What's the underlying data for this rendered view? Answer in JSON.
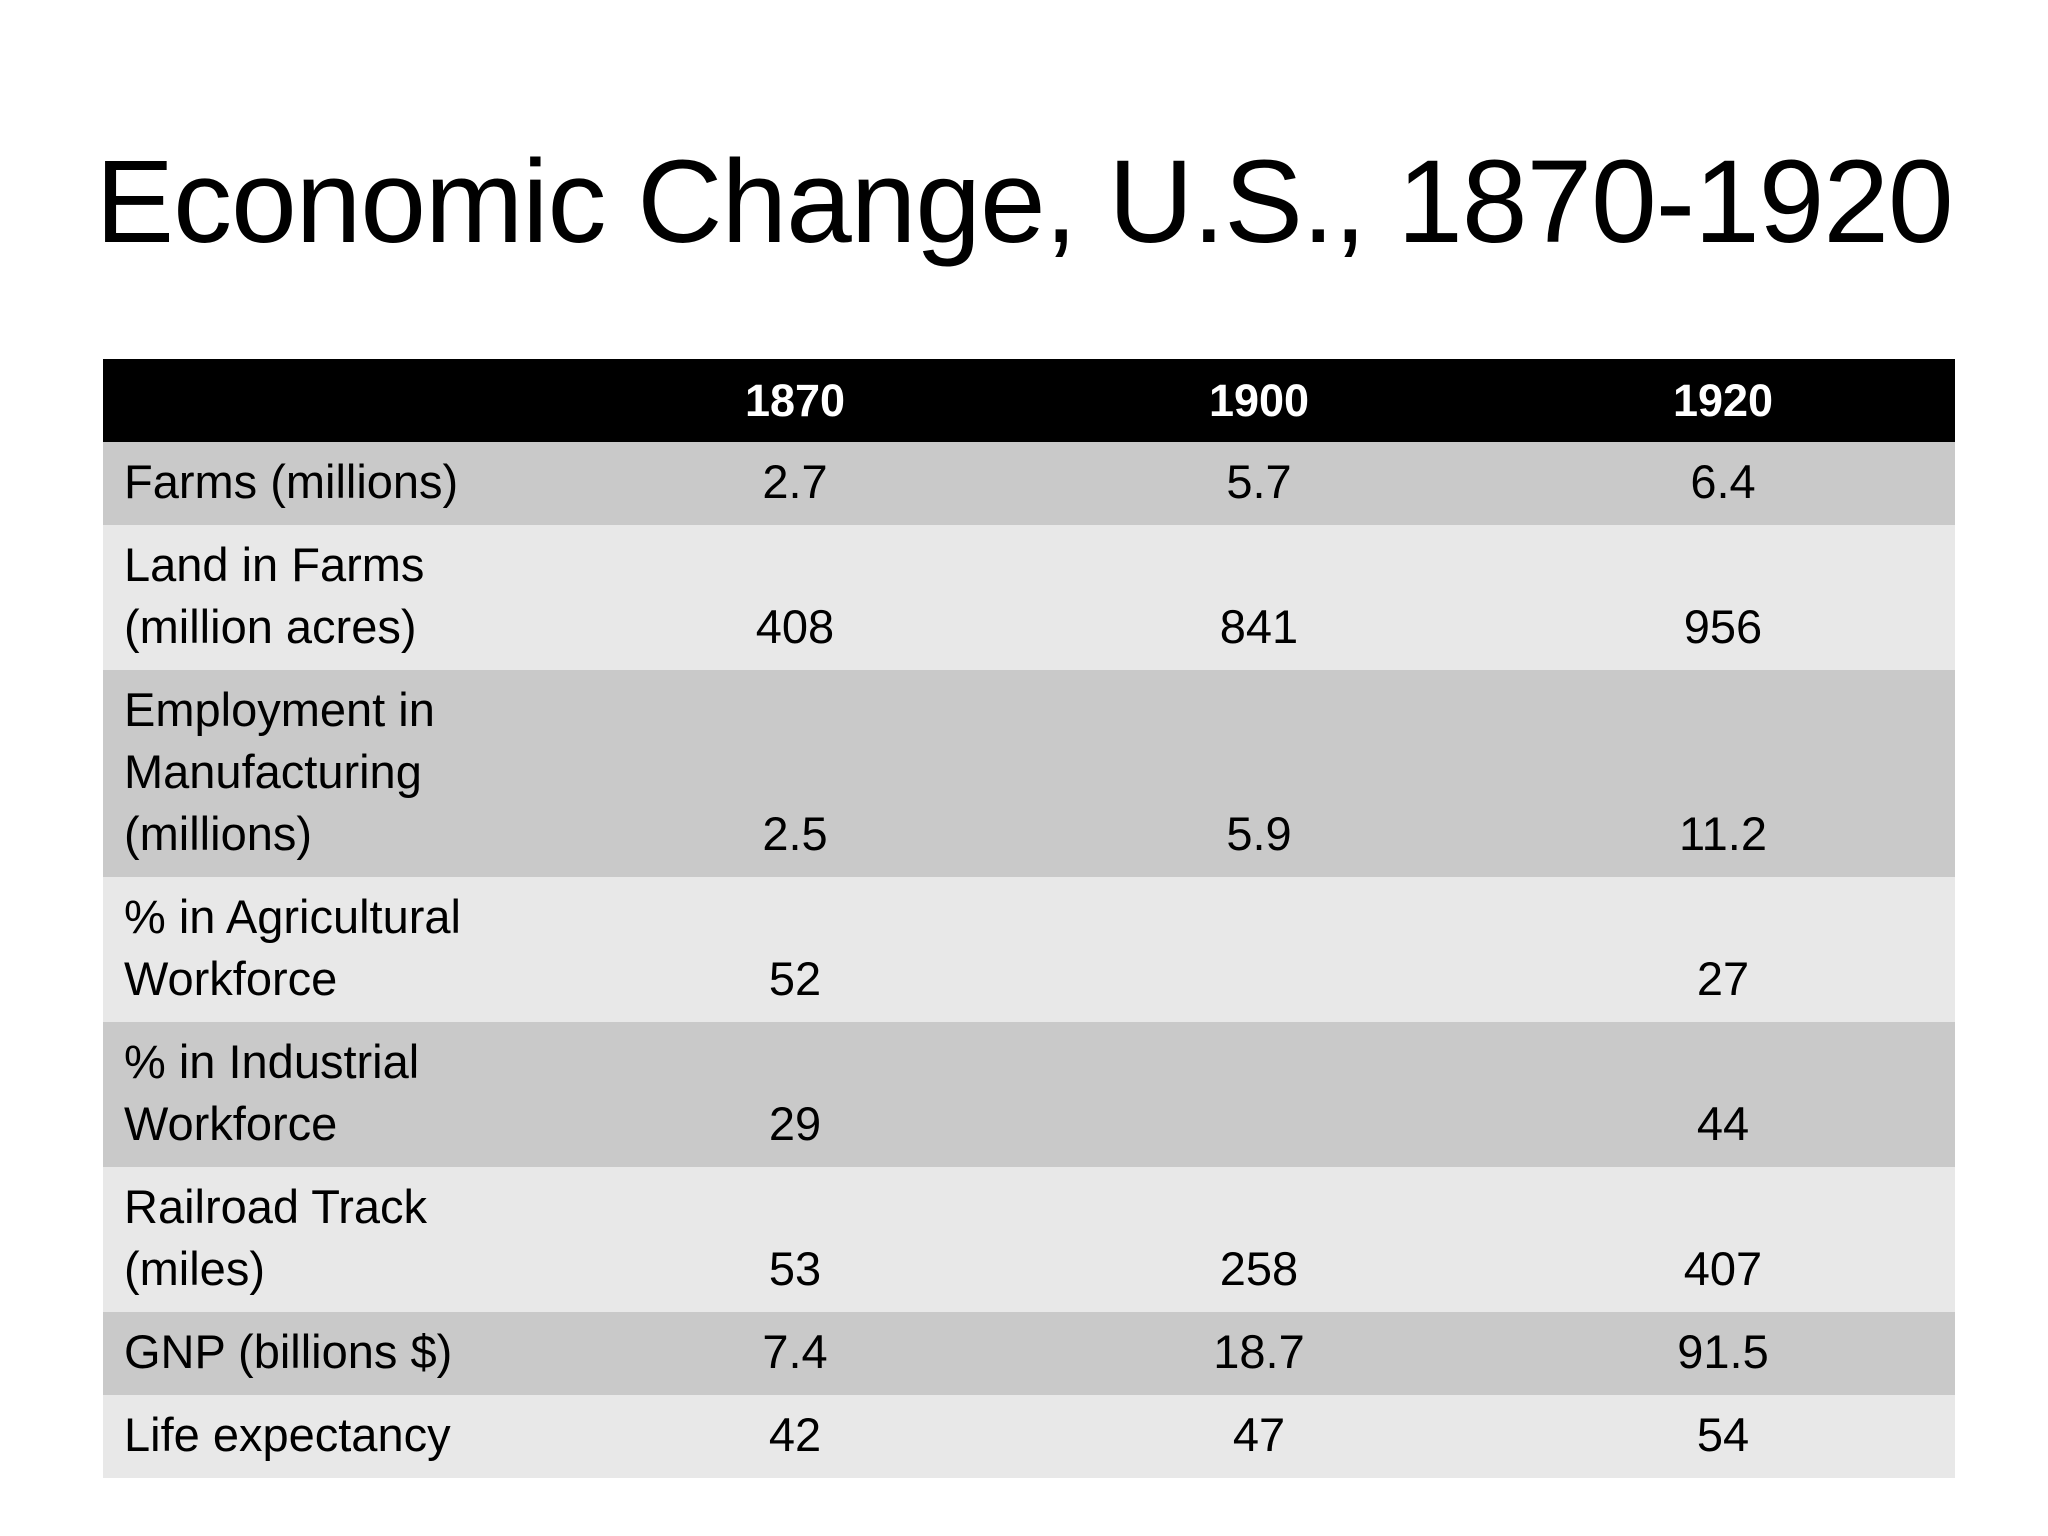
{
  "title": "Economic Change, U.S., 1870-1920",
  "table": {
    "columns": [
      "",
      "1870",
      "1900",
      "1920"
    ],
    "rows": [
      {
        "label": "Farms (millions)",
        "values": [
          "2.7",
          "5.7",
          "6.4"
        ]
      },
      {
        "label": "Land in Farms (million acres)",
        "values": [
          "408",
          "841",
          "956"
        ]
      },
      {
        "label": "Employment in Manufacturing (millions)",
        "values": [
          "2.5",
          "5.9",
          "11.2"
        ]
      },
      {
        "label": "% in Agricultural Workforce",
        "values": [
          "52",
          "",
          "27"
        ]
      },
      {
        "label": "% in Industrial Workforce",
        "values": [
          "29",
          "",
          "44"
        ]
      },
      {
        "label": "Railroad Track (miles)",
        "values": [
          "53",
          "258",
          "407"
        ]
      },
      {
        "label": "GNP (billions $)",
        "values": [
          "7.4",
          "18.7",
          "91.5"
        ]
      },
      {
        "label": "Life expectancy",
        "values": [
          "42",
          "47",
          "54"
        ]
      }
    ]
  },
  "colors": {
    "header_bg": "#000000",
    "header_text": "#ffffff",
    "row_band_dark": "#c9c9c9",
    "row_band_light": "#e8e8e8"
  }
}
